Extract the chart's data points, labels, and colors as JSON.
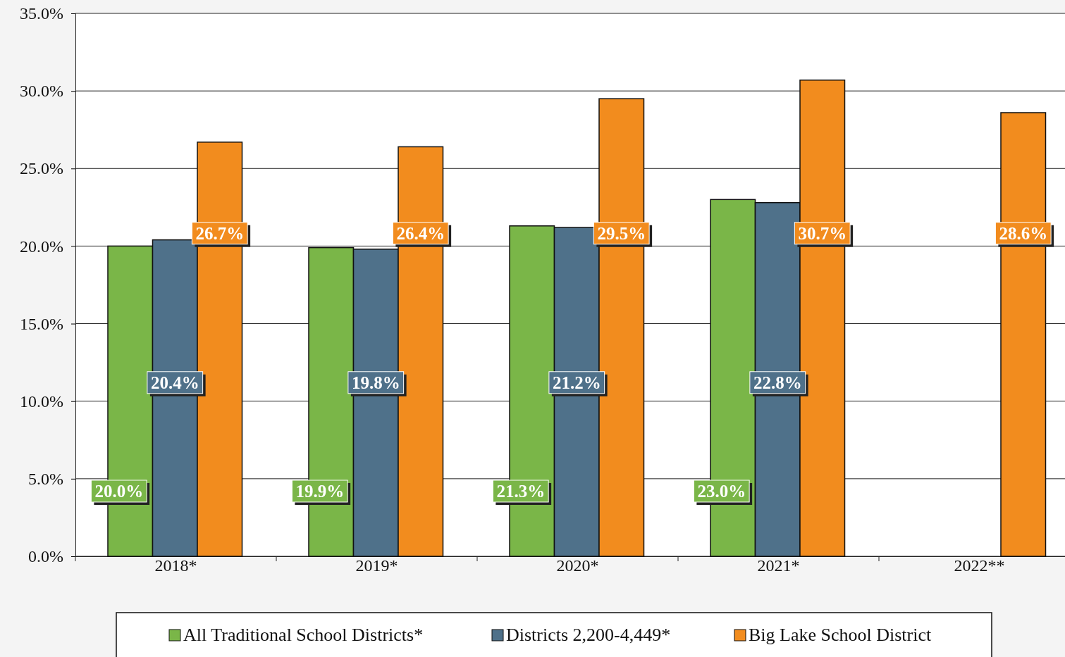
{
  "chart_data": {
    "type": "bar",
    "categories": [
      "2018*",
      "2019*",
      "2020*",
      "2021*",
      "2022**"
    ],
    "series": [
      {
        "name": "All Traditional School Districts*",
        "color": "#7ab648",
        "values": [
          20.0,
          19.9,
          21.3,
          23.0,
          null
        ],
        "value_labels": [
          "20.0%",
          "19.9%",
          "21.3%",
          "23.0%",
          null
        ]
      },
      {
        "name": "Districts 2,200-4,449*",
        "color": "#4f718a",
        "values": [
          20.4,
          19.8,
          21.2,
          22.8,
          null
        ],
        "value_labels": [
          "20.4%",
          "19.8%",
          "21.2%",
          "22.8%",
          null
        ]
      },
      {
        "name": "Big Lake School District",
        "color": "#f28c1e",
        "values": [
          26.7,
          26.4,
          29.5,
          30.7,
          28.6
        ],
        "value_labels": [
          "26.7%",
          "26.4%",
          "29.5%",
          "30.7%",
          "28.6%"
        ]
      }
    ],
    "ylim": [
      0,
      35
    ],
    "yticks": [
      {
        "value": 0,
        "label": "0.0%"
      },
      {
        "value": 5,
        "label": "5.0%"
      },
      {
        "value": 10,
        "label": "10.0%"
      },
      {
        "value": 15,
        "label": "15.0%"
      },
      {
        "value": 20,
        "label": "20.0%"
      },
      {
        "value": 25,
        "label": "25.0%"
      },
      {
        "value": 30,
        "label": "30.0%"
      },
      {
        "value": 35,
        "label": "35.0%"
      }
    ],
    "grid": "y",
    "legend": "bottom"
  }
}
